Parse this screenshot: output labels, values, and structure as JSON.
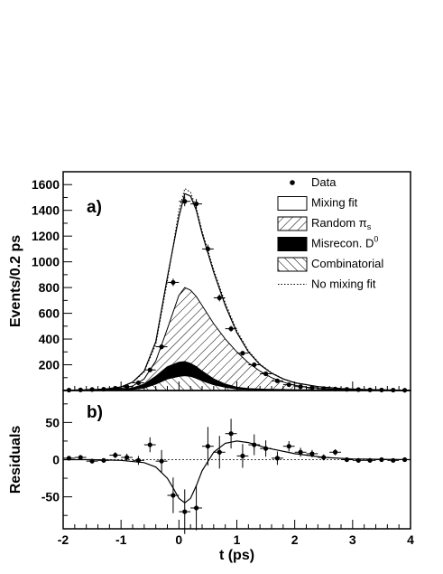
{
  "chart_data": [
    {
      "panel": "a)",
      "type": "line",
      "xlabel": "t (ps)",
      "ylabel": "Events/0.2 ps",
      "xlim": [
        -2,
        4
      ],
      "ylim": [
        0,
        1700
      ],
      "yticks": [
        200,
        400,
        600,
        800,
        1000,
        1200,
        1400,
        1600
      ],
      "xticks": [
        -2,
        -1,
        0,
        1,
        2,
        3,
        4
      ],
      "legend": {
        "placement": "top-right",
        "entries": [
          {
            "label": "Data",
            "style": "marker"
          },
          {
            "label": "Mixing fit",
            "style": "open-box"
          },
          {
            "label": "Random π",
            "sub": "s",
            "style": "hatch-back"
          },
          {
            "label": "Misrecon. D",
            "sup": "0",
            "style": "solid"
          },
          {
            "label": "Combinatorial",
            "style": "hatch-fwd"
          },
          {
            "label": "No mixing fit",
            "style": "dotted-line"
          }
        ]
      },
      "series": [
        {
          "name": "Data",
          "kind": "points",
          "x": [
            -1.9,
            -1.7,
            -1.5,
            -1.3,
            -1.1,
            -0.9,
            -0.7,
            -0.5,
            -0.3,
            -0.1,
            0.1,
            0.3,
            0.5,
            0.7,
            0.9,
            1.1,
            1.3,
            1.5,
            1.7,
            1.9,
            2.1,
            2.3,
            2.5,
            2.7,
            2.9,
            3.1,
            3.3,
            3.5,
            3.7,
            3.9
          ],
          "y": [
            3,
            5,
            8,
            10,
            18,
            30,
            60,
            160,
            340,
            840,
            1470,
            1450,
            1100,
            720,
            480,
            290,
            200,
            130,
            75,
            45,
            30,
            22,
            15,
            12,
            9,
            7,
            5,
            4,
            3,
            2
          ],
          "err": [
            2,
            2,
            3,
            3,
            4,
            6,
            8,
            13,
            18,
            29,
            38,
            38,
            33,
            27,
            22,
            17,
            14,
            11,
            9,
            7,
            5,
            5,
            4,
            3,
            3,
            3,
            2,
            2,
            2,
            1
          ]
        },
        {
          "name": "Mixing fit",
          "kind": "curve",
          "x": [
            -2,
            -1.8,
            -1.6,
            -1.4,
            -1.2,
            -1.0,
            -0.8,
            -0.6,
            -0.4,
            -0.2,
            0.0,
            0.1,
            0.2,
            0.3,
            0.4,
            0.6,
            0.8,
            1.0,
            1.2,
            1.4,
            1.6,
            1.8,
            2.0,
            2.4,
            2.8,
            3.2,
            3.6,
            4.0
          ],
          "y": [
            2,
            3,
            5,
            8,
            15,
            28,
            65,
            150,
            380,
            880,
            1350,
            1530,
            1510,
            1400,
            1220,
            920,
            660,
            450,
            300,
            200,
            135,
            90,
            60,
            30,
            15,
            8,
            4,
            2
          ]
        },
        {
          "name": "No mixing fit",
          "kind": "curve",
          "x": [
            -2,
            -1.8,
            -1.6,
            -1.4,
            -1.2,
            -1.0,
            -0.8,
            -0.6,
            -0.4,
            -0.2,
            0.0,
            0.1,
            0.2,
            0.3,
            0.4,
            0.6,
            0.8,
            1.0,
            1.2,
            1.4,
            1.6,
            1.8,
            2.0,
            2.4,
            2.8,
            3.2,
            3.6,
            4.0
          ],
          "y": [
            2,
            3,
            5,
            8,
            15,
            28,
            62,
            145,
            360,
            850,
            1400,
            1570,
            1540,
            1420,
            1240,
            940,
            680,
            465,
            310,
            205,
            138,
            92,
            62,
            31,
            15,
            8,
            4,
            2
          ]
        },
        {
          "name": "Random π",
          "kind": "stack-top",
          "x": [
            -2,
            -1.5,
            -1.0,
            -0.8,
            -0.6,
            -0.4,
            -0.2,
            0.0,
            0.1,
            0.2,
            0.3,
            0.4,
            0.6,
            0.8,
            1.0,
            1.2,
            1.4,
            1.6,
            1.8,
            2.0,
            2.2,
            2.6,
            3.0,
            4.0
          ],
          "y": [
            0,
            3,
            15,
            35,
            90,
            230,
            480,
            740,
            800,
            780,
            730,
            660,
            520,
            400,
            300,
            215,
            150,
            100,
            65,
            40,
            25,
            10,
            4,
            0
          ]
        },
        {
          "name": "Misrecon. D",
          "kind": "stack-top",
          "x": [
            -2,
            -1.5,
            -1.0,
            -0.8,
            -0.6,
            -0.4,
            -0.2,
            0.0,
            0.1,
            0.2,
            0.3,
            0.4,
            0.6,
            0.8,
            1.0,
            1.2,
            1.5,
            2.0,
            3.0,
            4.0
          ],
          "y": [
            0,
            2,
            8,
            20,
            50,
            110,
            185,
            220,
            225,
            210,
            185,
            150,
            90,
            50,
            25,
            15,
            10,
            6,
            3,
            0
          ]
        },
        {
          "name": "Combinatorial",
          "kind": "stack-top",
          "x": [
            -2,
            -1.0,
            -0.8,
            -0.6,
            -0.4,
            -0.2,
            0.0,
            0.1,
            0.2,
            0.3,
            0.4,
            0.6,
            0.8,
            1.0,
            1.5,
            2.0,
            3.0,
            4.0
          ],
          "y": [
            0,
            3,
            8,
            20,
            50,
            90,
            110,
            115,
            110,
            95,
            75,
            45,
            25,
            12,
            5,
            3,
            1,
            0
          ]
        }
      ]
    },
    {
      "panel": "b)",
      "type": "scatter",
      "xlabel": "t (ps)",
      "ylabel": "Residuals",
      "xlim": [
        -2,
        4
      ],
      "ylim": [
        -93,
        93
      ],
      "yticks": [
        -50,
        0,
        50
      ],
      "xticks": [
        -2,
        -1,
        0,
        1,
        2,
        3,
        4
      ],
      "xtick_labels": [
        "-2",
        "-1",
        "0",
        "1",
        "2",
        "3",
        "4"
      ],
      "series": [
        {
          "name": "Residuals",
          "kind": "points",
          "x": [
            -1.9,
            -1.7,
            -1.5,
            -1.3,
            -1.1,
            -0.9,
            -0.7,
            -0.5,
            -0.3,
            -0.1,
            0.1,
            0.3,
            0.5,
            0.7,
            0.9,
            1.1,
            1.3,
            1.5,
            1.7,
            1.9,
            2.1,
            2.3,
            2.5,
            2.7,
            2.9,
            3.1,
            3.3,
            3.5,
            3.7,
            3.9
          ],
          "y": [
            2,
            3,
            -2,
            -1,
            6,
            3,
            -1,
            20,
            -2,
            -48,
            -70,
            -65,
            18,
            10,
            35,
            5,
            20,
            15,
            2,
            18,
            10,
            8,
            3,
            10,
            0,
            -1,
            -1,
            0,
            -1,
            0
          ],
          "err": [
            3,
            3,
            3,
            3,
            4,
            5,
            6,
            10,
            15,
            24,
            30,
            30,
            26,
            22,
            20,
            16,
            14,
            11,
            9,
            7,
            6,
            5,
            4,
            4,
            3,
            3,
            3,
            2,
            2,
            2
          ]
        },
        {
          "name": "Mixing fit residual",
          "kind": "curve",
          "x": [
            -2,
            -1.5,
            -1.0,
            -0.6,
            -0.4,
            -0.2,
            -0.1,
            0.0,
            0.1,
            0.2,
            0.3,
            0.4,
            0.6,
            0.8,
            1.0,
            1.2,
            1.5,
            2.0,
            2.5,
            3.0,
            4.0
          ],
          "y": [
            0,
            0,
            -1,
            -4,
            -10,
            -25,
            -38,
            -52,
            -58,
            -52,
            -35,
            -15,
            10,
            22,
            25,
            23,
            16,
            8,
            3,
            1,
            0
          ]
        },
        {
          "name": "zero",
          "kind": "dashed",
          "x": [
            -2,
            4
          ],
          "y": [
            0,
            0
          ]
        }
      ]
    }
  ]
}
